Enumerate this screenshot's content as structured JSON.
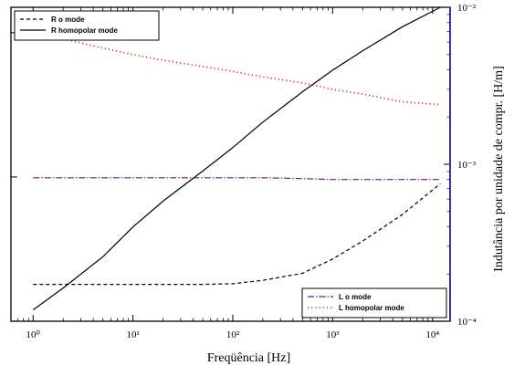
{
  "chart_data": {
    "type": "line",
    "xlabel": "Freqüência [Hz]",
    "ylabel_right": "Indutância por unidade de compr. [H/m]",
    "x_scale": "log",
    "y_scale": "log",
    "xlim": [
      0.6,
      15000
    ],
    "ylim_left": [
      1e-07,
      1.5e-05
    ],
    "ylim_right": [
      0.0001,
      0.01
    ],
    "x_ticks": [
      {
        "value": 1,
        "label": "10⁰"
      },
      {
        "value": 10,
        "label": "10¹"
      },
      {
        "value": 100,
        "label": "10²"
      },
      {
        "value": 1000,
        "label": "10³"
      },
      {
        "value": 10000,
        "label": "10⁴"
      }
    ],
    "y_ticks_left": [
      {
        "value": 1e-06,
        "label": ""
      },
      {
        "value": 1e-05,
        "label": ""
      },
      {
        "value": 1e-07,
        "label": ""
      }
    ],
    "y_ticks_right": [
      {
        "value": 0.0001,
        "label": "10⁻⁴"
      },
      {
        "value": 0.001,
        "label": "10⁻³"
      },
      {
        "value": 0.01,
        "label": "10⁻²"
      }
    ],
    "legends": [
      {
        "position": "top-left",
        "entries": [
          {
            "label": "R o mode",
            "color": "#000000",
            "dash": "dashed"
          },
          {
            "label": "R homopolar mode",
            "color": "#000000",
            "dash": "solid"
          }
        ]
      },
      {
        "position": "bottom-right",
        "entries": [
          {
            "label": "L o mode",
            "color": "#6a1a8a",
            "dash": "dashdot"
          },
          {
            "label": "L homopolar mode",
            "color": "#e0201c",
            "dash": "dotted"
          }
        ]
      }
    ],
    "series": [
      {
        "name": "R o mode",
        "axis": "left",
        "color": "#000000",
        "dash": "dashed",
        "x": [
          1,
          2,
          5,
          10,
          20,
          50,
          100,
          200,
          500,
          1000,
          2000,
          5000,
          12000
        ],
        "y": [
          1.8e-07,
          1.8e-07,
          1.8e-07,
          1.8e-07,
          1.8e-07,
          1.8e-07,
          1.82e-07,
          1.92e-07,
          2.15e-07,
          2.7e-07,
          3.6e-07,
          5.5e-07,
          9e-07
        ]
      },
      {
        "name": "R homopolar mode",
        "axis": "left",
        "color": "#000000",
        "dash": "solid",
        "x": [
          1,
          2,
          5,
          10,
          20,
          50,
          100,
          200,
          500,
          1000,
          2000,
          5000,
          12000
        ],
        "y": [
          1.2e-07,
          1.7e-07,
          2.8e-07,
          4.5e-07,
          6.8e-07,
          1.1e-06,
          1.6e-06,
          2.4e-06,
          3.9e-06,
          5.5e-06,
          7.5e-06,
          1.1e-05,
          1.5e-05
        ]
      },
      {
        "name": "L o mode",
        "axis": "right",
        "color": "#6a1a8a",
        "dash": "dashdot",
        "x": [
          1,
          2,
          5,
          10,
          20,
          50,
          100,
          200,
          500,
          1000,
          2000,
          5000,
          12000
        ],
        "y": [
          0.00082,
          0.00082,
          0.00082,
          0.00082,
          0.00082,
          0.00082,
          0.00082,
          0.00082,
          0.00081,
          0.0008,
          0.0008,
          0.0008,
          0.0008
        ]
      },
      {
        "name": "L homopolar mode",
        "axis": "right",
        "color": "#e0201c",
        "dash": "dotted",
        "x": [
          1,
          2,
          5,
          10,
          20,
          50,
          100,
          200,
          500,
          1000,
          2000,
          5000,
          12000
        ],
        "y": [
          0.0066,
          0.0063,
          0.0055,
          0.005,
          0.0046,
          0.0042,
          0.0039,
          0.0036,
          0.0033,
          0.003,
          0.0028,
          0.0025,
          0.0024
        ]
      }
    ]
  }
}
